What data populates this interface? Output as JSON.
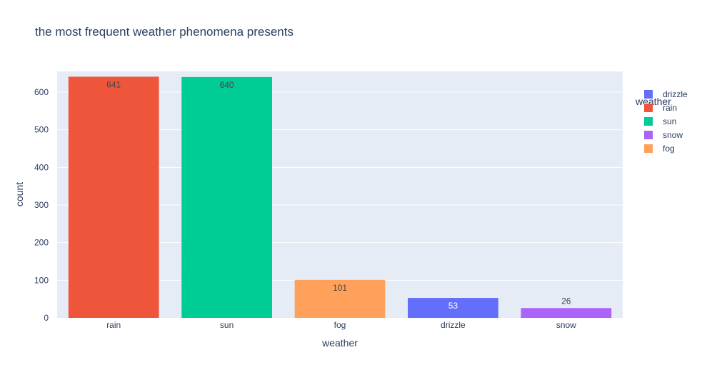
{
  "chart_data": {
    "type": "bar",
    "title": "the most frequent weather phenomena presents",
    "xlabel": "weather",
    "ylabel": "count",
    "ylim": [
      0,
      655
    ],
    "yticks": [
      0,
      100,
      200,
      300,
      400,
      500,
      600
    ],
    "categories": [
      "rain",
      "sun",
      "fog",
      "drizzle",
      "snow"
    ],
    "values": [
      641,
      640,
      101,
      53,
      26
    ],
    "bar_colors": [
      "#EF553B",
      "#00CC96",
      "#FFA15A",
      "#636EFA",
      "#AB63FA"
    ],
    "label_colors": [
      "#444444",
      "#444444",
      "#444444",
      "#ffffff",
      "#444444"
    ],
    "label_inside": [
      true,
      true,
      true,
      true,
      false
    ],
    "legend": {
      "title": "weather",
      "placement": "right",
      "items": [
        {
          "label": "drizzle",
          "color": "#636EFA"
        },
        {
          "label": "rain",
          "color": "#EF553B"
        },
        {
          "label": "sun",
          "color": "#00CC96"
        },
        {
          "label": "snow",
          "color": "#AB63FA"
        },
        {
          "label": "fog",
          "color": "#FFA15A"
        }
      ]
    },
    "grid": true,
    "plot_background": "#E5ECF6"
  }
}
